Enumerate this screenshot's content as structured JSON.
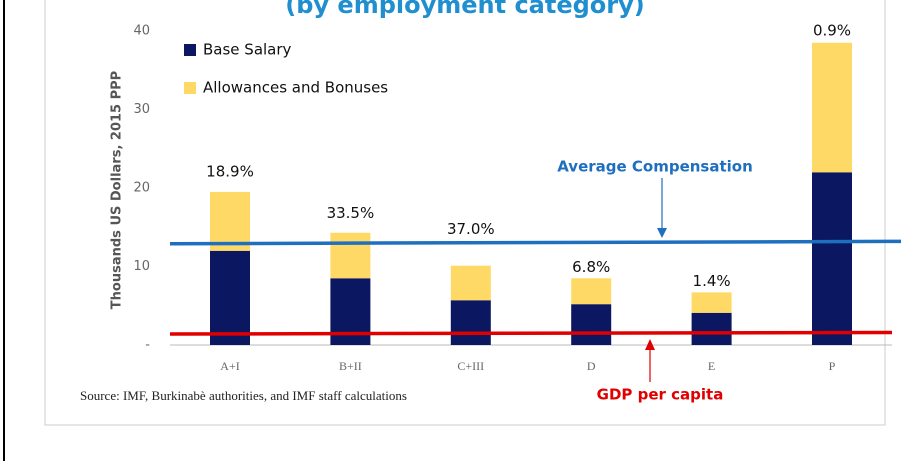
{
  "chart_data": {
    "type": "stacked_bar",
    "title": "(by employment category)",
    "y_label": "Thousands US Dollars, 2015 PPP",
    "categories": [
      "A+I",
      "B+II",
      "C+III",
      "D",
      "E",
      "P"
    ],
    "series": [
      {
        "name": "Base Salary",
        "color": "#0b1760",
        "values": [
          12,
          8.5,
          5.7,
          5.2,
          4.1,
          22
        ]
      },
      {
        "name": "Allowances and Bonuses",
        "color": "#ffd966",
        "values": [
          7.5,
          5.8,
          4.4,
          3.3,
          2.6,
          16.5
        ]
      }
    ],
    "category_shares": [
      "18.9%",
      "33.5%",
      "37.0%",
      "6.8%",
      "1.4%",
      "0.9%"
    ],
    "reference_lines": [
      {
        "name": "Average Compensation",
        "color": "#1f6fbf",
        "values": [
          12.9,
          13.2
        ]
      },
      {
        "name": "GDP per capita",
        "color": "#e00000",
        "values": [
          1.4,
          1.6
        ]
      }
    ],
    "source": "Source: IMF, Burkinabè authorities, and IMF staff calculations",
    "ylim": [
      0,
      40
    ],
    "yticks": [
      {
        "value": 0,
        "label": "-"
      },
      10,
      20,
      30,
      40
    ],
    "legend": "top-left"
  }
}
